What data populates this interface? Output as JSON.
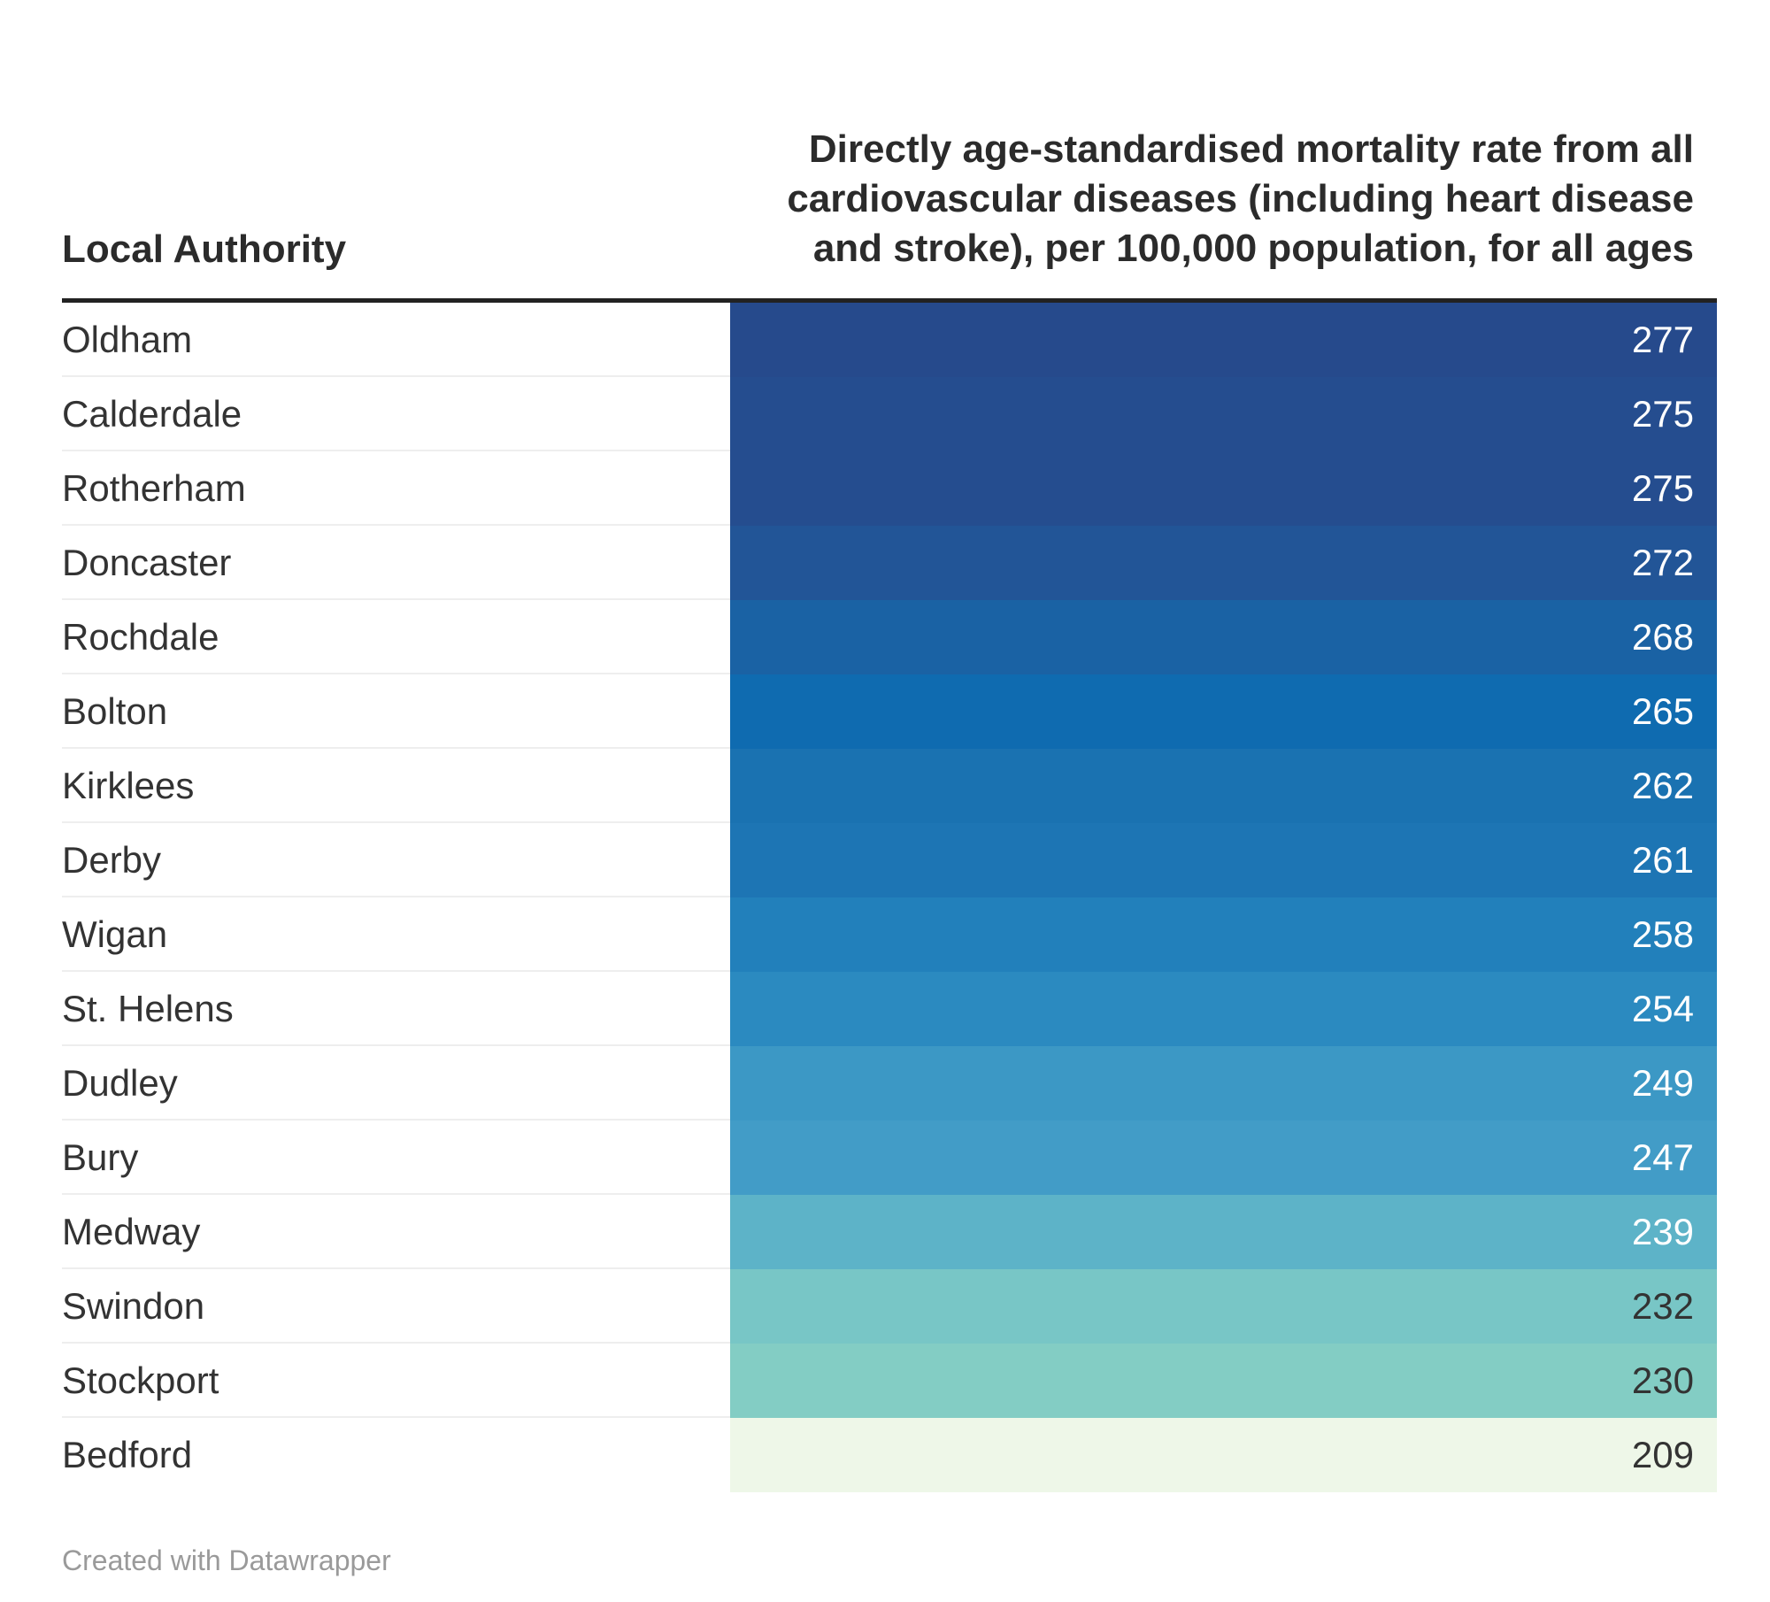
{
  "chart_data": {
    "type": "table",
    "columns": {
      "label": "Local Authority",
      "value": "Directly age-standardised mortality rate from all cardiovascular diseases (including heart disease and stroke), per 100,000 population, for all ages"
    },
    "rows": [
      {
        "name": "Oldham",
        "value": 277,
        "color": "#264a8c"
      },
      {
        "name": "Calderdale",
        "value": 275,
        "color": "#254d8f"
      },
      {
        "name": "Rotherham",
        "value": 275,
        "color": "#254d8f"
      },
      {
        "name": "Doncaster",
        "value": 272,
        "color": "#225597"
      },
      {
        "name": "Rochdale",
        "value": 268,
        "color": "#1a62a4"
      },
      {
        "name": "Bolton",
        "value": 265,
        "color": "#0f6bb0"
      },
      {
        "name": "Kirklees",
        "value": 262,
        "color": "#1a72b1"
      },
      {
        "name": "Derby",
        "value": 261,
        "color": "#1d75b4"
      },
      {
        "name": "Wigan",
        "value": 258,
        "color": "#2280bb"
      },
      {
        "name": "St. Helens",
        "value": 254,
        "color": "#2b8ac0"
      },
      {
        "name": "Dudley",
        "value": 249,
        "color": "#3c98c5"
      },
      {
        "name": "Bury",
        "value": 247,
        "color": "#429cc7"
      },
      {
        "name": "Medway",
        "value": 239,
        "color": "#5db3c8"
      },
      {
        "name": "Swindon",
        "value": 232,
        "color": "#78c6c6"
      },
      {
        "name": "Stockport",
        "value": 230,
        "color": "#83cdc4"
      },
      {
        "name": "Bedford",
        "value": 209,
        "color": "#eef7e8"
      }
    ]
  },
  "footer": {
    "credit": "Created with Datawrapper"
  }
}
